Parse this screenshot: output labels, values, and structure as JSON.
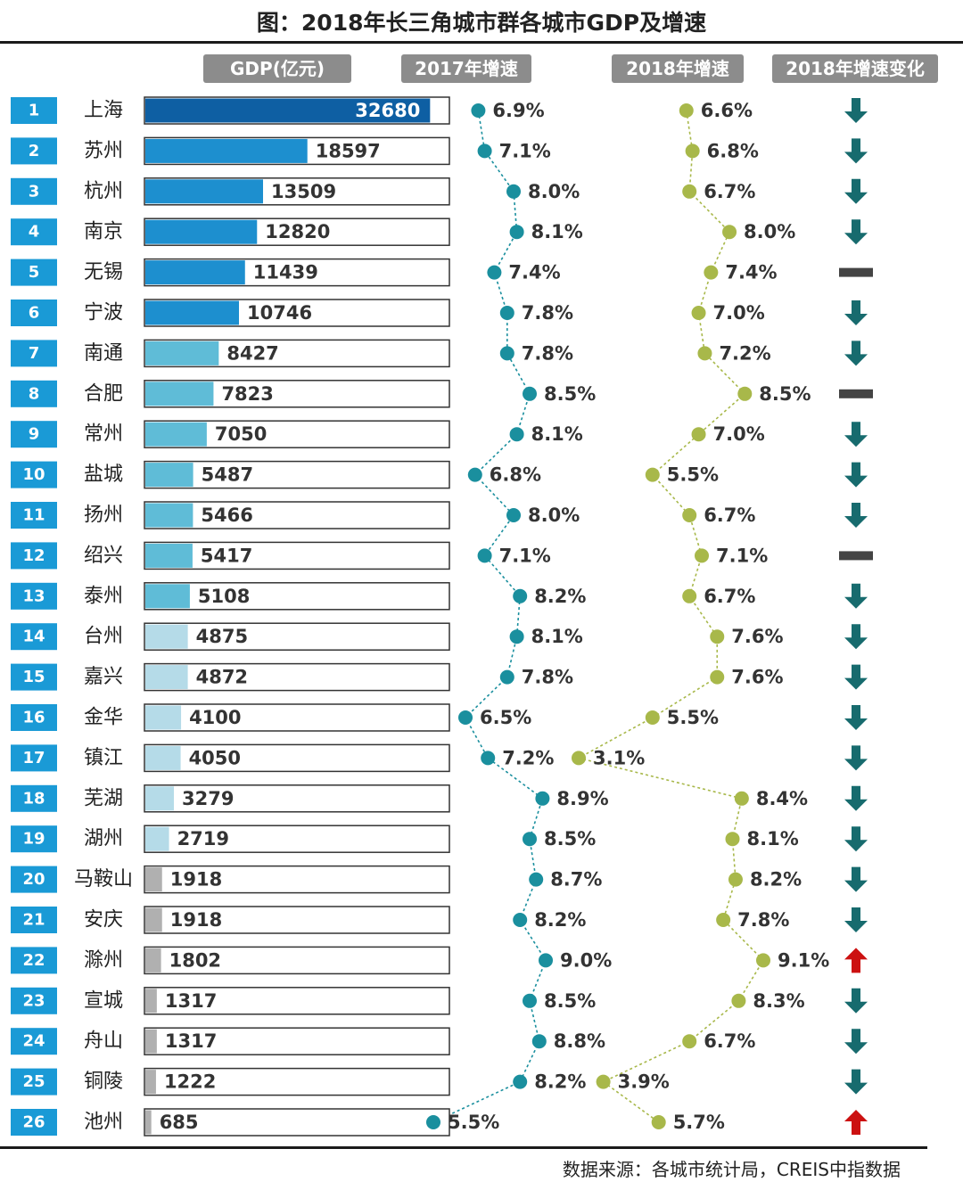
{
  "title": "图：2018年长三角城市群各城市GDP及增速",
  "headers": {
    "gdp": "GDP(亿元)",
    "growth_2017": "2017年增速",
    "growth_2018": "2018年增速",
    "change": "2018年增速变化"
  },
  "source": "数据来源：各城市统计局，CREIS中指数据",
  "colors": {
    "rank_box": "#1a9ad6",
    "bar_tier1": "#0e5fa3",
    "bar_tier2": "#1d8fcf",
    "bar_tier3": "#5fbcd7",
    "bar_tier4": "#b5dbe8",
    "bar_tier5": "#b0b0b0",
    "line_2017": "#1a8f9e",
    "line_2018": "#a8b84a",
    "arrow_down": "#176b6e",
    "arrow_up": "#cc1111",
    "flat": "#444444"
  },
  "chart_data": {
    "type": "bar",
    "title": "图：2018年长三角城市群各城市GDP及增速",
    "rows": [
      {
        "rank": "1",
        "city": "上海",
        "gdp": 32680,
        "g2017": "6.9%",
        "g2018": "6.6%",
        "change": "down"
      },
      {
        "rank": "2",
        "city": "苏州",
        "gdp": 18597,
        "g2017": "7.1%",
        "g2018": "6.8%",
        "change": "down"
      },
      {
        "rank": "3",
        "city": "杭州",
        "gdp": 13509,
        "g2017": "8.0%",
        "g2018": "6.7%",
        "change": "down"
      },
      {
        "rank": "4",
        "city": "南京",
        "gdp": 12820,
        "g2017": "8.1%",
        "g2018": "8.0%",
        "change": "down"
      },
      {
        "rank": "5",
        "city": "无锡",
        "gdp": 11439,
        "g2017": "7.4%",
        "g2018": "7.4%",
        "change": "flat"
      },
      {
        "rank": "6",
        "city": "宁波",
        "gdp": 10746,
        "g2017": "7.8%",
        "g2018": "7.0%",
        "change": "down"
      },
      {
        "rank": "7",
        "city": "南通",
        "gdp": 8427,
        "g2017": "7.8%",
        "g2018": "7.2%",
        "change": "down"
      },
      {
        "rank": "8",
        "city": "合肥",
        "gdp": 7823,
        "g2017": "8.5%",
        "g2018": "8.5%",
        "change": "flat"
      },
      {
        "rank": "9",
        "city": "常州",
        "gdp": 7050,
        "g2017": "8.1%",
        "g2018": "7.0%",
        "change": "down"
      },
      {
        "rank": "10",
        "city": "盐城",
        "gdp": 5487,
        "g2017": "6.8%",
        "g2018": "5.5%",
        "change": "down"
      },
      {
        "rank": "11",
        "city": "扬州",
        "gdp": 5466,
        "g2017": "8.0%",
        "g2018": "6.7%",
        "change": "down"
      },
      {
        "rank": "12",
        "city": "绍兴",
        "gdp": 5417,
        "g2017": "7.1%",
        "g2018": "7.1%",
        "change": "flat"
      },
      {
        "rank": "13",
        "city": "泰州",
        "gdp": 5108,
        "g2017": "8.2%",
        "g2018": "6.7%",
        "change": "down"
      },
      {
        "rank": "14",
        "city": "台州",
        "gdp": 4875,
        "g2017": "8.1%",
        "g2018": "7.6%",
        "change": "down"
      },
      {
        "rank": "15",
        "city": "嘉兴",
        "gdp": 4872,
        "g2017": "7.8%",
        "g2018": "7.6%",
        "change": "down"
      },
      {
        "rank": "16",
        "city": "金华",
        "gdp": 4100,
        "g2017": "6.5%",
        "g2018": "5.5%",
        "change": "down"
      },
      {
        "rank": "17",
        "city": "镇江",
        "gdp": 4050,
        "g2017": "7.2%",
        "g2018": "3.1%",
        "change": "down"
      },
      {
        "rank": "18",
        "city": "芜湖",
        "gdp": 3279,
        "g2017": "8.9%",
        "g2018": "8.4%",
        "change": "down"
      },
      {
        "rank": "19",
        "city": "湖州",
        "gdp": 2719,
        "g2017": "8.5%",
        "g2018": "8.1%",
        "change": "down"
      },
      {
        "rank": "20",
        "city": "马鞍山",
        "gdp": 1918,
        "g2017": "8.7%",
        "g2018": "8.2%",
        "change": "down"
      },
      {
        "rank": "21",
        "city": "安庆",
        "gdp": 1918,
        "g2017": "8.2%",
        "g2018": "7.8%",
        "change": "down"
      },
      {
        "rank": "22",
        "city": "滁州",
        "gdp": 1802,
        "g2017": "9.0%",
        "g2018": "9.1%",
        "change": "up"
      },
      {
        "rank": "23",
        "city": "宣城",
        "gdp": 1317,
        "g2017": "8.5%",
        "g2018": "8.3%",
        "change": "down"
      },
      {
        "rank": "24",
        "city": "舟山",
        "gdp": 1317,
        "g2017": "8.8%",
        "g2018": "6.7%",
        "change": "down"
      },
      {
        "rank": "25",
        "city": "铜陵",
        "gdp": 1222,
        "g2017": "8.2%",
        "g2018": "3.9%",
        "change": "down"
      },
      {
        "rank": "26",
        "city": "池州",
        "gdp": 685,
        "g2017": "5.5%",
        "g2018": "5.7%",
        "change": "up"
      }
    ],
    "gdp_max": 35000
  }
}
